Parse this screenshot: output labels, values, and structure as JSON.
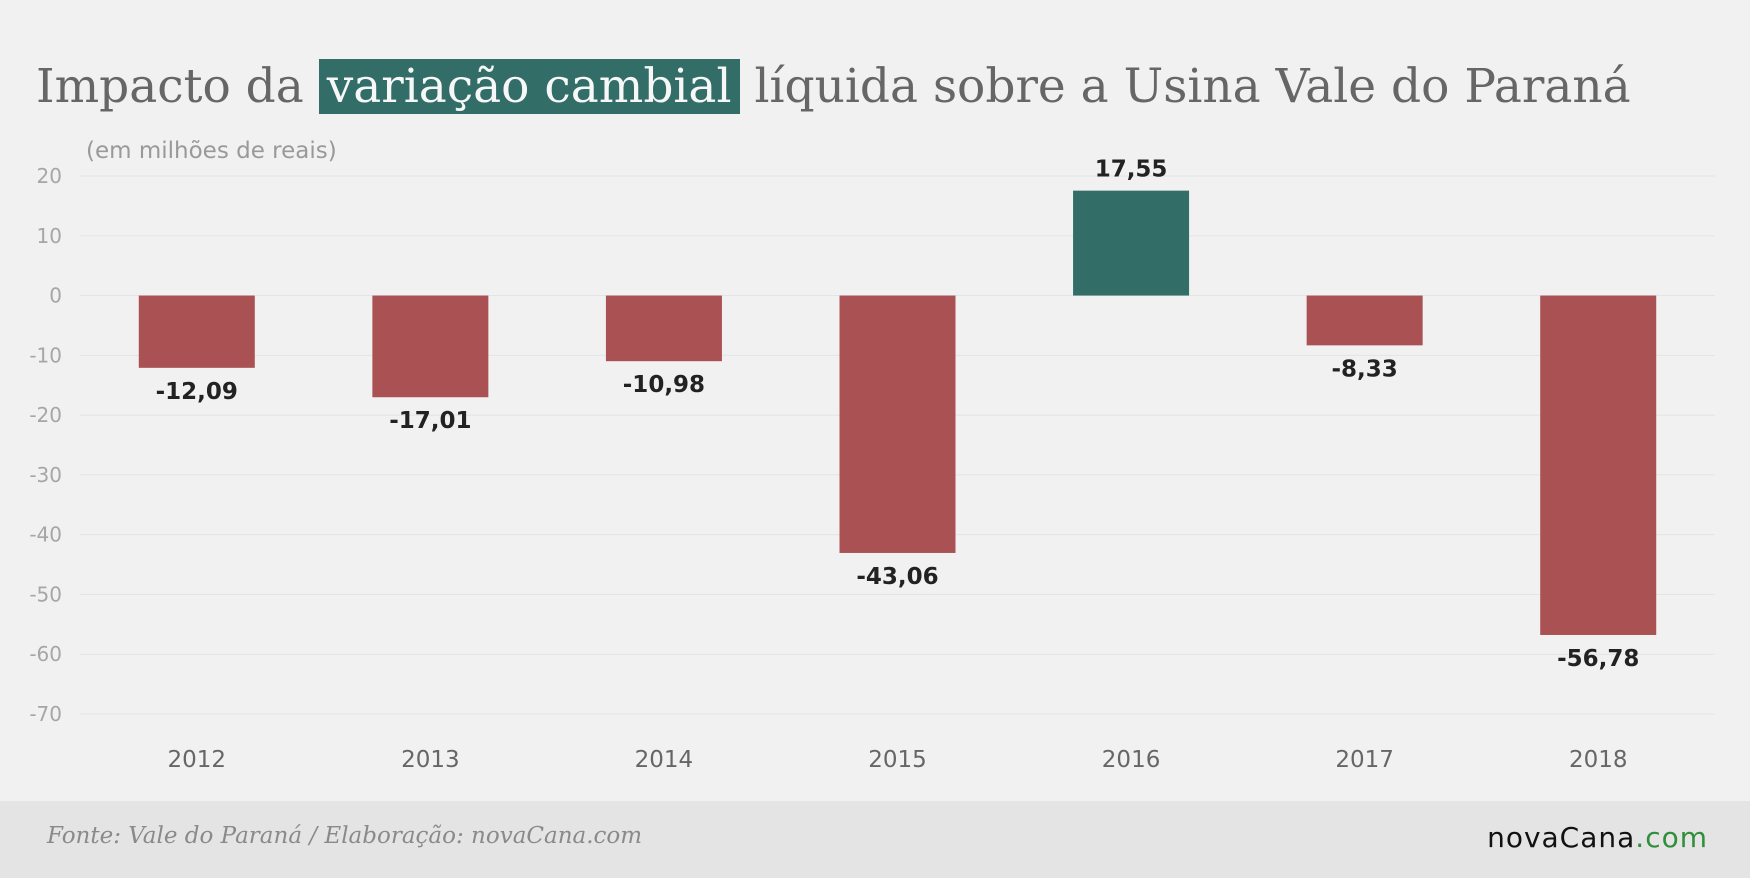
{
  "header": {
    "title_part1": "Impacto da ",
    "title_highlight": "variação cambial",
    "title_part2": " líquida sobre a Usina Vale do Paraná",
    "unit_note": "(em milhões de reais)"
  },
  "footer": {
    "source": "Fonte: Vale do Paraná / Elaboração: novaCana.com",
    "logo_main": "novaCana",
    "logo_suffix": ".com"
  },
  "colors": {
    "negative": "#aa5154",
    "positive": "#326d68",
    "highlight": "#326d68",
    "logo_accent": "#2f8f3a"
  },
  "chart_data": {
    "type": "bar",
    "categories": [
      "2012",
      "2013",
      "2014",
      "2015",
      "2016",
      "2017",
      "2018"
    ],
    "values": [
      -12.09,
      -17.01,
      -10.98,
      -43.06,
      17.55,
      -8.33,
      -56.78
    ],
    "value_labels": [
      "-12,09",
      "-17,01",
      "-10,98",
      "-43,06",
      "17,55",
      "-8,33",
      "-56,78"
    ],
    "ylim": [
      -70,
      20
    ],
    "yticks": [
      20,
      10,
      0,
      -10,
      -20,
      -30,
      -40,
      -50,
      -60,
      -70
    ],
    "ylabel": "(em milhões de reais)",
    "xlabel": "",
    "grid": true,
    "legend": "none"
  }
}
